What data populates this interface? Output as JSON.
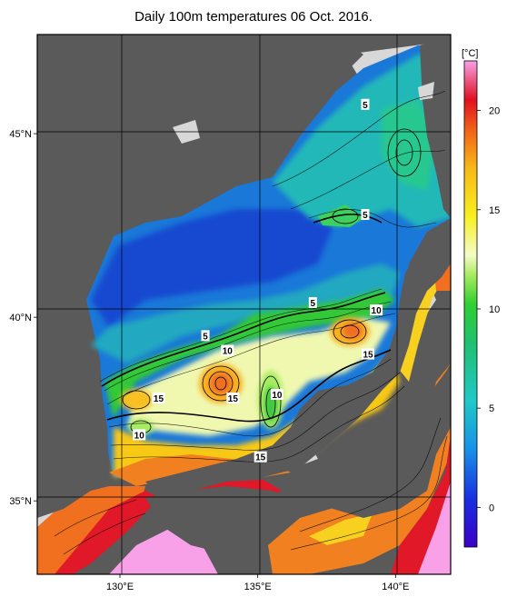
{
  "title": "Daily 100m temperatures 06 Oct. 2016.",
  "axes": {
    "x_ticks": [
      {
        "lon": 130,
        "label": "130°E"
      },
      {
        "lon": 135,
        "label": "135°E"
      },
      {
        "lon": 140,
        "label": "140°E"
      }
    ],
    "y_ticks": [
      {
        "lat": 35,
        "label": "35°N"
      },
      {
        "lat": 40,
        "label": "40°N"
      },
      {
        "lat": 45,
        "label": "45°N"
      }
    ],
    "lon_range": [
      127,
      142
    ],
    "lat_range": [
      33,
      47.7
    ]
  },
  "colorbar": {
    "unit": "[°C]",
    "range": [
      -2,
      22.5
    ],
    "ticks": [
      {
        "value": 0,
        "label": "0"
      },
      {
        "value": 5,
        "label": "5"
      },
      {
        "value": 10,
        "label": "10"
      },
      {
        "value": 15,
        "label": "15"
      },
      {
        "value": 20,
        "label": "20"
      }
    ]
  },
  "contour_labels": [
    {
      "text": "5",
      "lon": 138.9,
      "lat": 45.8
    },
    {
      "text": "5",
      "lon": 138.9,
      "lat": 42.8
    },
    {
      "text": "5",
      "lon": 137.0,
      "lat": 40.4
    },
    {
      "text": "5",
      "lon": 133.1,
      "lat": 39.5
    },
    {
      "text": "10",
      "lon": 139.3,
      "lat": 40.2
    },
    {
      "text": "10",
      "lon": 133.9,
      "lat": 39.1
    },
    {
      "text": "15",
      "lon": 139.0,
      "lat": 39.0
    },
    {
      "text": "15",
      "lon": 131.4,
      "lat": 37.8
    },
    {
      "text": "15",
      "lon": 134.1,
      "lat": 37.8
    },
    {
      "text": "10",
      "lon": 135.7,
      "lat": 37.9
    },
    {
      "text": "10",
      "lon": 130.7,
      "lat": 36.8
    },
    {
      "text": "15",
      "lon": 135.1,
      "lat": 36.2
    }
  ],
  "colors": {
    "land": "#5a5a5a",
    "no_data": "#d8d8d8",
    "cold": "#1060d8",
    "warm": "#f07020"
  }
}
